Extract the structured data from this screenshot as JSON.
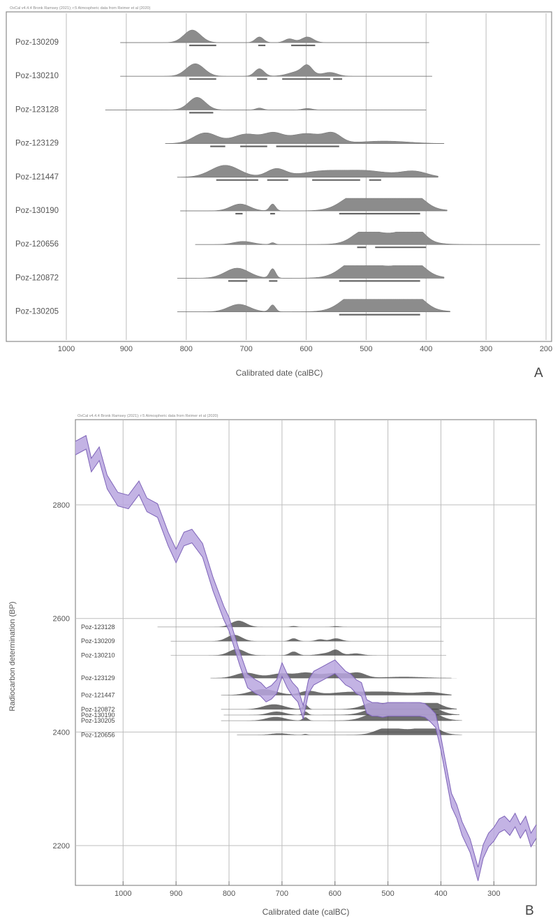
{
  "panel_a": {
    "header": "OxCal v4.4.4 Bronk Ramsey (2021); r:5 Atmospheric data from Reimer et al (2020)",
    "panel_label": "A",
    "x_axis_title": "Calibrated date (calBC)"
  },
  "panel_b": {
    "header": "OxCal v4.4.4 Bronk Ramsey (2021); r:5 Atmospheric data from Reimer et al (2020)",
    "panel_label": "B",
    "x_axis_title": "Calibrated date (calBC)",
    "y_axis_title": "Radiocarbon determination (BP)"
  },
  "chart_data": [
    {
      "type": "area",
      "title": "",
      "xlabel": "Calibrated date (calBC)",
      "xlim": [
        1000,
        200
      ],
      "x_ticks": [
        1000,
        900,
        800,
        700,
        600,
        500,
        400,
        300,
        200
      ],
      "x_tick_labels": [
        "1000",
        "900",
        "800",
        "700",
        "600",
        "500",
        "400",
        "300",
        "200"
      ],
      "grid": true,
      "series": [
        {
          "name": "Poz-130209",
          "x_range": [
            910,
            395
          ],
          "peaks": [
            [
              790,
              1.0,
              14
            ],
            [
              678,
              0.45,
              7
            ],
            [
              628,
              0.3,
              8
            ],
            [
              598,
              0.45,
              10
            ]
          ],
          "ranges": [
            [
              795,
              750
            ],
            [
              680,
              668
            ],
            [
              625,
              585
            ]
          ]
        },
        {
          "name": "Poz-130210",
          "x_range": [
            910,
            390
          ],
          "peaks": [
            [
              785,
              1.0,
              15
            ],
            [
              678,
              0.6,
              8
            ],
            [
              610,
              0.4,
              18
            ],
            [
              598,
              0.6,
              8
            ],
            [
              560,
              0.3,
              12
            ]
          ],
          "ranges": [
            [
              795,
              750
            ],
            [
              682,
              665
            ],
            [
              640,
              560
            ],
            [
              555,
              540
            ]
          ]
        },
        {
          "name": "Poz-123128",
          "x_range": [
            935,
            400
          ],
          "peaks": [
            [
              782,
              1.0,
              14
            ],
            [
              678,
              0.15,
              6
            ],
            [
              598,
              0.12,
              8
            ]
          ],
          "ranges": [
            [
              795,
              755
            ]
          ]
        },
        {
          "name": "Poz-123129",
          "x_range": [
            835,
            370
          ],
          "peaks": [
            [
              768,
              0.85,
              20
            ],
            [
              700,
              0.75,
              22
            ],
            [
              655,
              0.7,
              16
            ],
            [
              600,
              0.8,
              28
            ],
            [
              555,
              0.65,
              14
            ],
            [
              470,
              0.2,
              40
            ]
          ],
          "ranges": [
            [
              760,
              735
            ],
            [
              710,
              665
            ],
            [
              650,
              545
            ]
          ]
        },
        {
          "name": "Poz-121447",
          "x_range": [
            815,
            380
          ],
          "peaks": [
            [
              735,
              0.95,
              24
            ],
            [
              650,
              0.65,
              16
            ],
            [
              575,
              0.45,
              35
            ],
            [
              500,
              0.5,
              38
            ],
            [
              420,
              0.45,
              22
            ]
          ],
          "ranges": [
            [
              750,
              680
            ],
            [
              665,
              630
            ],
            [
              590,
              510
            ],
            [
              495,
              475
            ]
          ]
        },
        {
          "name": "Poz-130190",
          "x_range": [
            810,
            365
          ],
          "peaks": [
            [
              710,
              0.55,
              16
            ],
            [
              656,
              0.55,
              5
            ],
            [
              520,
              0.8,
              22
            ],
            [
              470,
              0.95,
              45
            ],
            [
              420,
              0.85,
              18
            ]
          ],
          "ranges": [
            [
              718,
              706
            ],
            [
              660,
              652
            ],
            [
              545,
              410
            ]
          ]
        },
        {
          "name": "Poz-120656",
          "x_range": [
            785,
            210
          ],
          "peaks": [
            [
              705,
              0.25,
              16
            ],
            [
              656,
              0.15,
              4
            ],
            [
              505,
              0.7,
              18
            ],
            [
              460,
              0.85,
              40
            ],
            [
              420,
              1.0,
              16
            ]
          ],
          "ranges": [
            [
              515,
              500
            ],
            [
              485,
              400
            ]
          ]
        },
        {
          "name": "Poz-120872",
          "x_range": [
            815,
            370
          ],
          "peaks": [
            [
              715,
              0.8,
              20
            ],
            [
              656,
              0.75,
              5
            ],
            [
              520,
              0.95,
              22
            ],
            [
              470,
              0.9,
              45
            ],
            [
              420,
              0.9,
              18
            ]
          ],
          "ranges": [
            [
              730,
              698
            ],
            [
              662,
              648
            ],
            [
              545,
              410
            ]
          ]
        },
        {
          "name": "Poz-130205",
          "x_range": [
            815,
            360
          ],
          "peaks": [
            [
              712,
              0.6,
              18
            ],
            [
              656,
              0.55,
              5
            ],
            [
              520,
              0.95,
              22
            ],
            [
              470,
              0.95,
              45
            ],
            [
              420,
              0.9,
              18
            ]
          ],
          "ranges": [
            [
              545,
              410
            ]
          ]
        }
      ]
    },
    {
      "type": "line",
      "title": "",
      "xlabel": "Calibrated date (calBC)",
      "ylabel": "Radiocarbon determination (BP)",
      "xlim": [
        1090,
        220
      ],
      "ylim": [
        2130,
        2950
      ],
      "x_ticks": [
        1000,
        900,
        800,
        700,
        600,
        500,
        400,
        300
      ],
      "x_tick_labels": [
        "1000",
        "900",
        "800",
        "700",
        "600",
        "500",
        "400",
        "300"
      ],
      "y_ticks": [
        2200,
        2400,
        2600,
        2800
      ],
      "y_tick_labels": [
        "2200",
        "2400",
        "2600",
        "2800"
      ],
      "grid": true,
      "series": [
        {
          "name": "calibration curve",
          "x": [
            1090,
            1070,
            1060,
            1045,
            1030,
            1010,
            990,
            970,
            955,
            935,
            915,
            900,
            885,
            870,
            850,
            830,
            810,
            800,
            790,
            780,
            765,
            750,
            740,
            730,
            720,
            710,
            700,
            690,
            680,
            670,
            660,
            650,
            640,
            630,
            620,
            610,
            600,
            590,
            580,
            570,
            560,
            550,
            540,
            530,
            520,
            510,
            500,
            490,
            480,
            470,
            460,
            450,
            440,
            430,
            420,
            410,
            405,
            400,
            390,
            380,
            370,
            360,
            345,
            330,
            320,
            310,
            300,
            290,
            280,
            270,
            260,
            250,
            240,
            230,
            220
          ],
          "y": [
            2900,
            2910,
            2870,
            2890,
            2840,
            2810,
            2805,
            2830,
            2800,
            2790,
            2740,
            2710,
            2740,
            2745,
            2720,
            2660,
            2610,
            2590,
            2560,
            2530,
            2490,
            2480,
            2475,
            2465,
            2470,
            2480,
            2510,
            2490,
            2475,
            2465,
            2435,
            2480,
            2495,
            2500,
            2505,
            2510,
            2515,
            2505,
            2495,
            2490,
            2480,
            2475,
            2445,
            2440,
            2440,
            2438,
            2440,
            2440,
            2440,
            2440,
            2440,
            2440,
            2440,
            2438,
            2430,
            2420,
            2400,
            2380,
            2330,
            2280,
            2260,
            2230,
            2200,
            2150,
            2190,
            2210,
            2220,
            2235,
            2240,
            2230,
            2245,
            2225,
            2240,
            2210,
            2225
          ],
          "band_sigma": 12
        }
      ],
      "sample_labels": [
        "Poz-123128",
        "Poz-130209",
        "Poz-130210",
        "Poz-123129",
        "Poz-121447",
        "Poz-120872",
        "Poz-130190",
        "Poz-130205",
        "Poz-120656"
      ],
      "sample_bp": [
        2585,
        2560,
        2535,
        2495,
        2465,
        2440,
        2430,
        2420,
        2395
      ]
    }
  ]
}
